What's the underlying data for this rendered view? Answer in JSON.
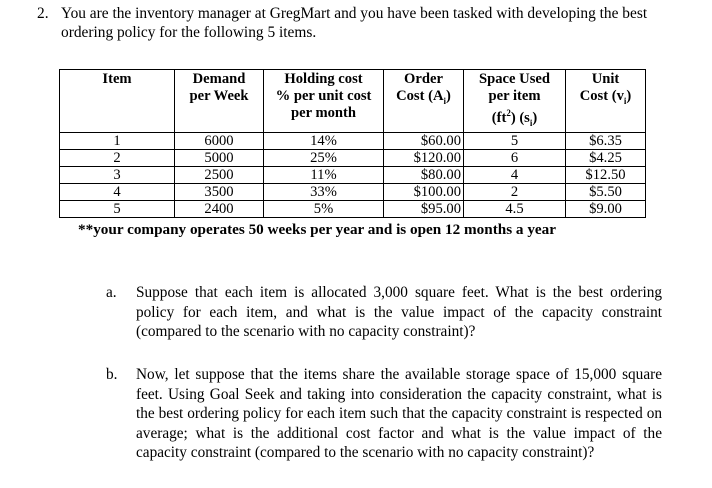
{
  "question": {
    "number": "2.",
    "intro": "You are the inventory manager at GregMart and you have been tasked with developing the best ordering policy for the following 5 items."
  },
  "table": {
    "headers": {
      "item": "Item",
      "demand_l1": "Demand",
      "demand_l2": "per Week",
      "holding_l1": "Holding cost",
      "holding_l2": "% per unit cost",
      "holding_l3": "per month",
      "order_l1": "Order",
      "order_l2": "Cost (A",
      "order_sub": "i",
      "order_end": ")",
      "space_l1": "Space Used",
      "space_l2": "per item",
      "space_l3a": "(ft",
      "space_sup": "2",
      "space_l3b": ") (s",
      "space_sub": "i",
      "space_end": ")",
      "unit_l1": "Unit",
      "unit_l2": "Cost (v",
      "unit_sub": "i",
      "unit_end": ")"
    },
    "rows": [
      {
        "item": "1",
        "demand": "6000",
        "holding": "14%",
        "order": "$60.00",
        "space": "5",
        "unit": "$6.35"
      },
      {
        "item": "2",
        "demand": "5000",
        "holding": "25%",
        "order": "$120.00",
        "space": "6",
        "unit": "$4.25"
      },
      {
        "item": "3",
        "demand": "2500",
        "holding": "11%",
        "order": "$80.00",
        "space": "4",
        "unit": "$12.50"
      },
      {
        "item": "4",
        "demand": "3500",
        "holding": "33%",
        "order": "$100.00",
        "space": "2",
        "unit": "$5.50"
      },
      {
        "item": "5",
        "demand": "2400",
        "holding": "5%",
        "order": "$95.00",
        "space": "4.5",
        "unit": "$9.00"
      }
    ]
  },
  "note": "**your company operates 50 weeks per year and is open 12 months a year",
  "parts": [
    {
      "label": "a.",
      "text": "Suppose that each item is allocated 3,000 square feet. What is the best ordering policy for each item, and what is the value impact of the capacity constraint (compared to the scenario with no capacity constraint)?"
    },
    {
      "label": "b.",
      "text": "Now, let suppose that the items share the available storage space of 15,000 square feet. Using Goal Seek and taking into consideration the capacity constraint, what is the best ordering policy for each item such that the capacity constraint is respected on average; what is the additional cost factor and what is the value impact of the capacity constraint (compared to the scenario with no capacity constraint)?"
    }
  ]
}
